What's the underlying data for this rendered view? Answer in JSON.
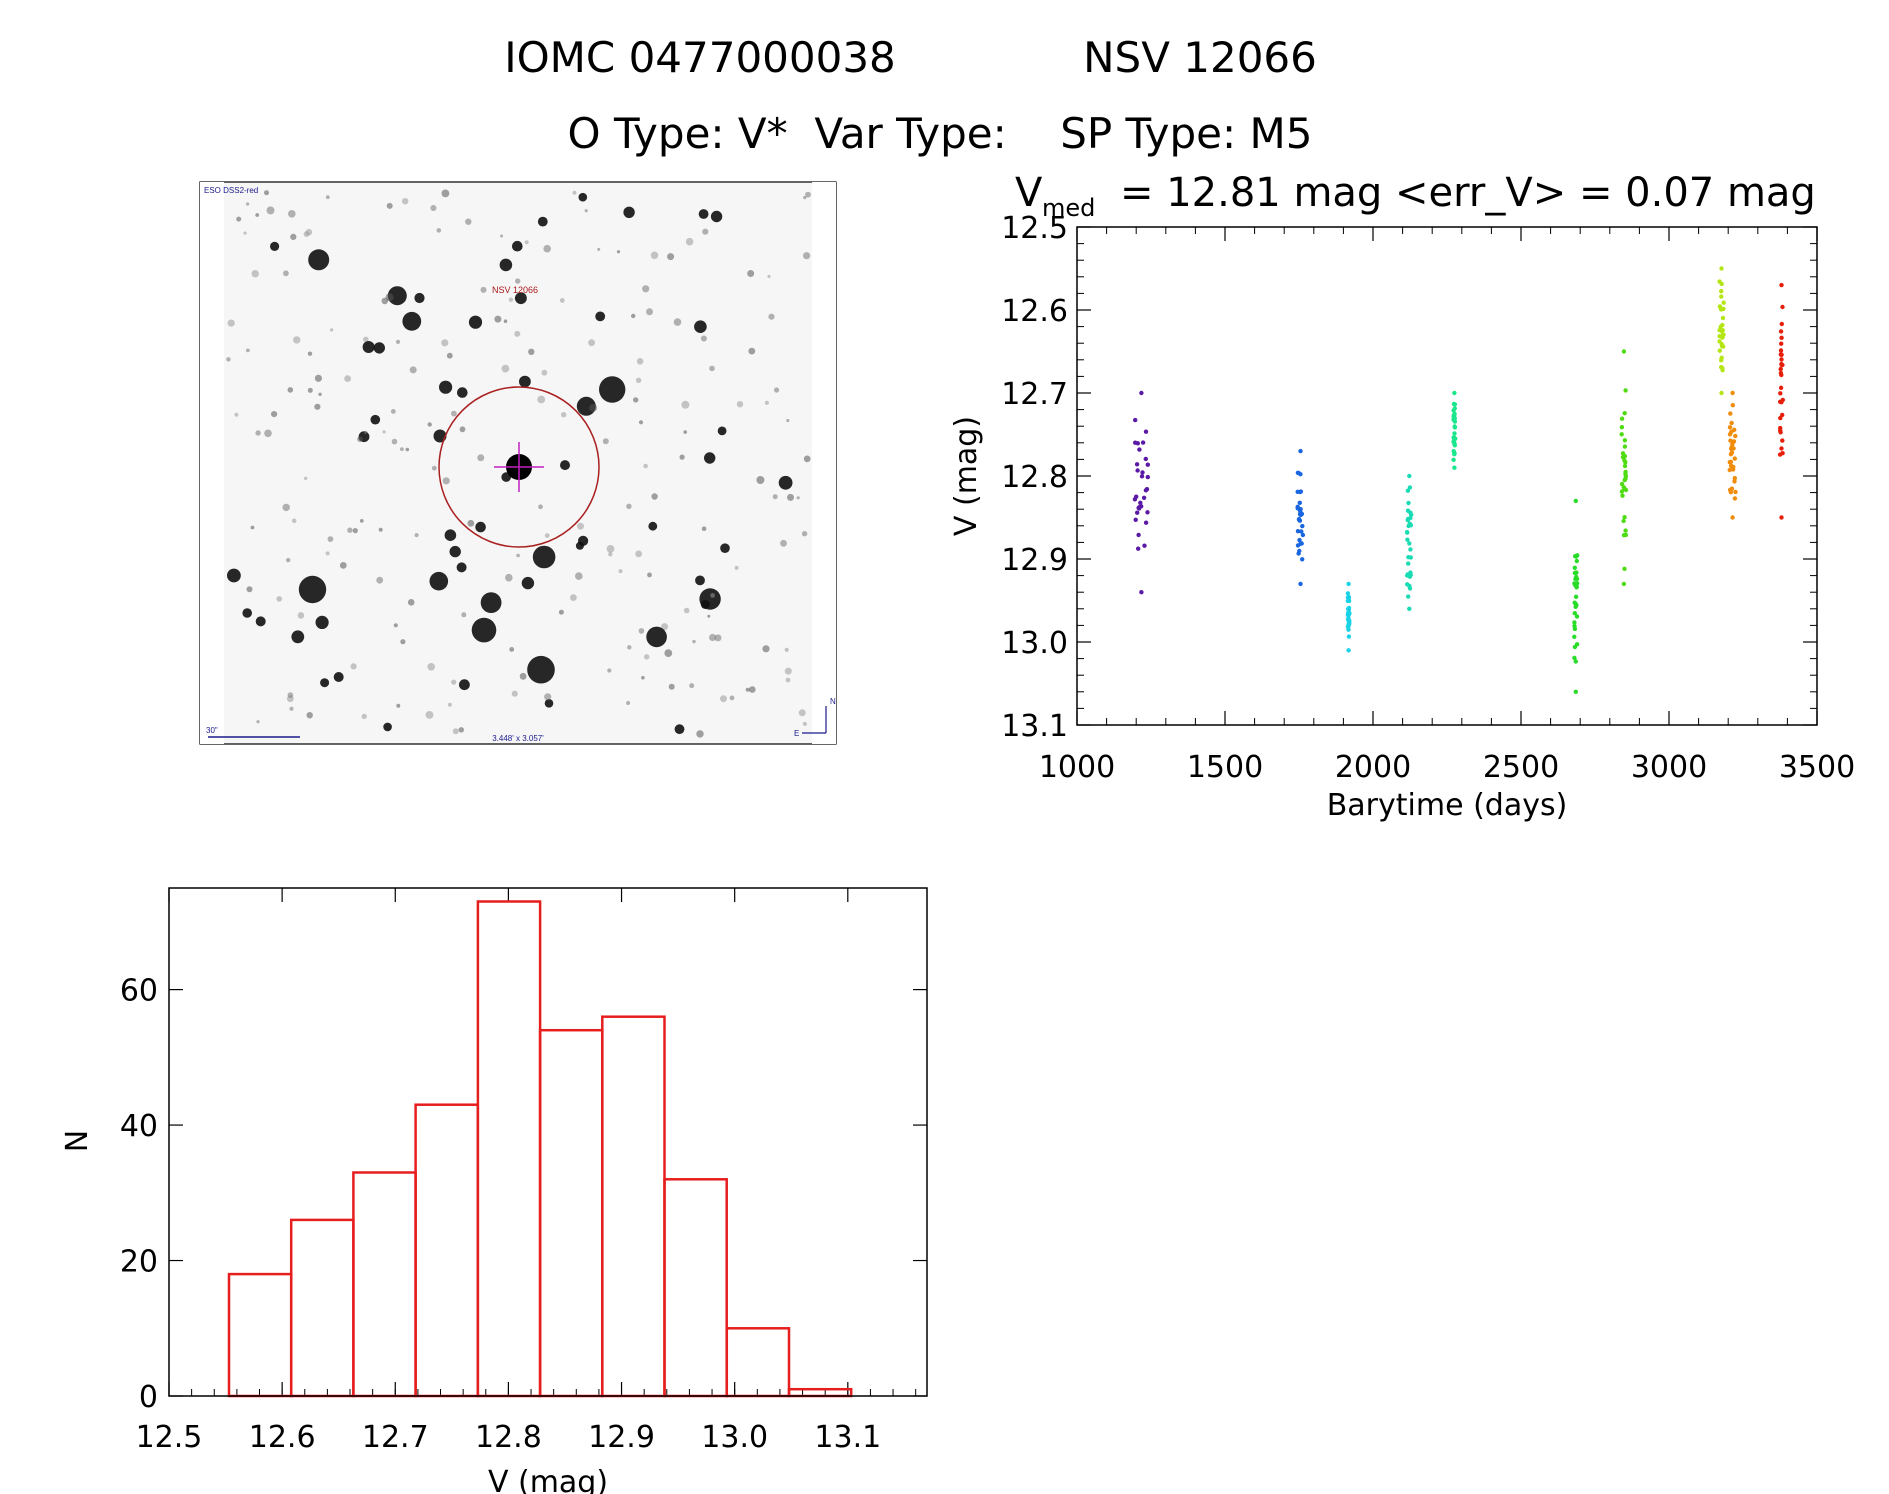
{
  "header": {
    "line1_left": "IOMC 0477000038",
    "line1_right": "NSV 12066",
    "line2": "O Type: V*  Var Type:    SP Type: M5"
  },
  "finder": {
    "survey_label": "ESO DSS2-red",
    "target_label": "NSV 12066",
    "scale_label": "30\"",
    "size_label": "3.448' x 3.057'",
    "north_label": "N",
    "east_label": "E"
  },
  "chart_data": [
    {
      "type": "scatter",
      "title_prefix": "V",
      "title_sub": "med",
      "title_rest": "= 12.81 mag <err_V> = 0.07 mag",
      "xlabel": "Barytime (days)",
      "ylabel": "V (mag)",
      "xlim": [
        1000,
        3500
      ],
      "ylim": [
        13.1,
        12.5
      ],
      "xticks": [
        "1000",
        "1500",
        "2000",
        "2500",
        "3000",
        "3500"
      ],
      "yticks": [
        "12.5",
        "12.6",
        "12.7",
        "12.8",
        "12.9",
        "13.0",
        "13.1"
      ],
      "groups": [
        {
          "color": "#5a1aa6",
          "x": [
            1195,
            1240
          ],
          "v": [
            12.7,
            12.94
          ]
        },
        {
          "color": "#1a66e0",
          "x": [
            1745,
            1765
          ],
          "v": [
            12.77,
            12.93
          ]
        },
        {
          "color": "#1ad2e6",
          "x": [
            1915,
            1920
          ],
          "v": [
            12.93,
            13.01
          ]
        },
        {
          "color": "#1adcb4",
          "x": [
            2115,
            2130
          ],
          "v": [
            12.8,
            12.96
          ]
        },
        {
          "color": "#1ae68c",
          "x": [
            2272,
            2278
          ],
          "v": [
            12.7,
            12.79
          ]
        },
        {
          "color": "#28dc28",
          "x": [
            2680,
            2690
          ],
          "v": [
            12.83,
            13.06
          ]
        },
        {
          "color": "#50dc14",
          "x": [
            2840,
            2855
          ],
          "v": [
            12.65,
            12.93
          ]
        },
        {
          "color": "#b4e614",
          "x": [
            3170,
            3185
          ],
          "v": [
            12.55,
            12.7
          ]
        },
        {
          "color": "#f08c0a",
          "x": [
            3205,
            3225
          ],
          "v": [
            12.7,
            12.85
          ]
        },
        {
          "color": "#e61e0a",
          "x": [
            3375,
            3385
          ],
          "v": [
            12.57,
            12.85
          ]
        }
      ]
    },
    {
      "type": "bar",
      "xlabel": "V (mag)",
      "ylabel": "N",
      "xlim": [
        12.5,
        13.17
      ],
      "ylim": [
        0,
        75
      ],
      "xticks": [
        "12.5",
        "12.6",
        "12.7",
        "12.8",
        "12.9",
        "13.0",
        "13.1"
      ],
      "yticks": [
        "0",
        "20",
        "40",
        "60"
      ],
      "bin_edges": [
        12.553,
        12.608,
        12.663,
        12.718,
        12.773,
        12.828,
        12.883,
        12.938,
        12.993,
        13.048,
        13.103
      ],
      "values": [
        18,
        26,
        33,
        43,
        73,
        54,
        56,
        32,
        10,
        1
      ],
      "bar_color": "#e61e1e"
    }
  ]
}
